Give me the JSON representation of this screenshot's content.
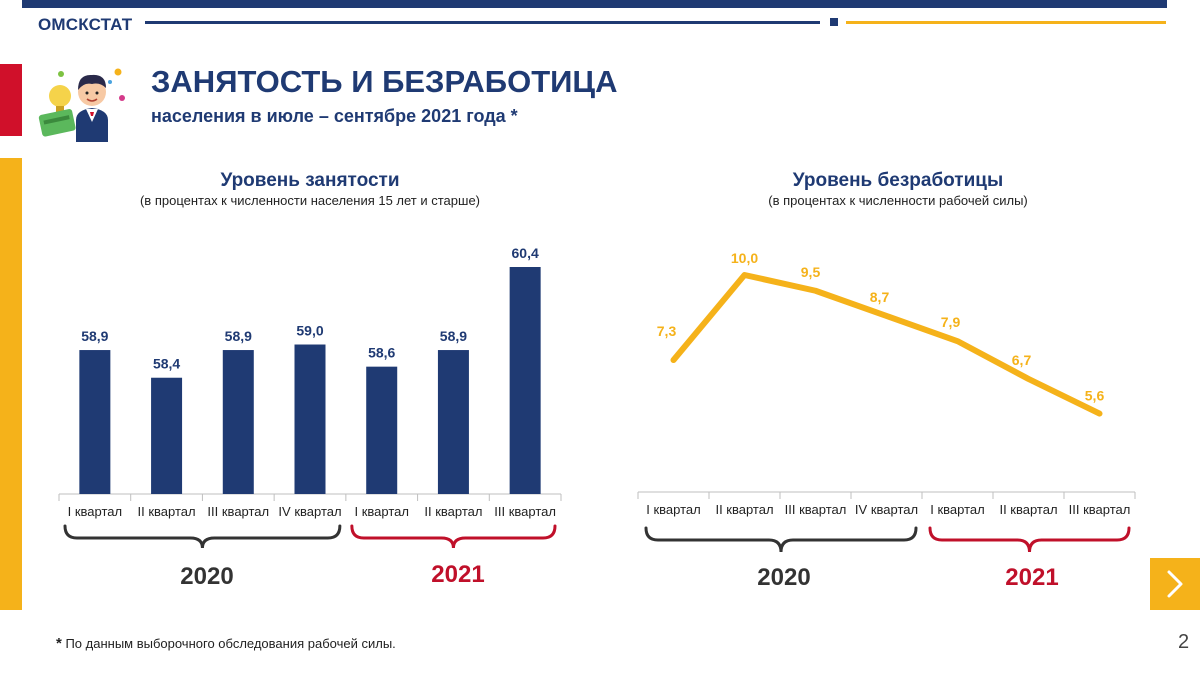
{
  "header": {
    "brand": "ОМСКСТАТ",
    "title": "ЗАНЯТОСТЬ И БЕЗРАБОТИЦА",
    "subtitle": "населения в июле – сентябре 2021 года *"
  },
  "colors": {
    "navy": "#1f3a73",
    "gold": "#f5b21a",
    "red": "#d0102a"
  },
  "chart_data": [
    {
      "type": "bar",
      "title": "Уровень занятости",
      "subtitle": "(в процентах  к численности  населения  15 лет и старше)",
      "categories": [
        "I квартал",
        "II квартал",
        "III квартал",
        "IV квартал",
        "I квартал",
        "II квартал",
        "III квартал"
      ],
      "values": [
        58.9,
        58.4,
        58.9,
        59.0,
        58.6,
        58.9,
        60.4
      ],
      "value_labels": [
        "58,9",
        "58,4",
        "58,9",
        "59,0",
        "58,6",
        "58,9",
        "60,4"
      ],
      "groups": [
        {
          "label": "2020",
          "start": 0,
          "end": 3,
          "color": "#333333"
        },
        {
          "label": "2021",
          "start": 4,
          "end": 6,
          "color": "#c0102a"
        }
      ],
      "bar_color": "#1f3a73",
      "ylim": [
        56.3,
        60.4
      ]
    },
    {
      "type": "line",
      "title": "Уровень безработицы",
      "subtitle": "(в процентах  к численности  рабочей силы)",
      "categories": [
        "I квартал",
        "II квартал",
        "III квартал",
        "IV квартал",
        "I квартал",
        "II квартал",
        "III квартал"
      ],
      "values": [
        7.3,
        10.0,
        9.5,
        8.7,
        7.9,
        6.7,
        5.6
      ],
      "value_labels": [
        "7,3",
        "10,0",
        "9,5",
        "8,7",
        "7,9",
        "6,7",
        "5,6"
      ],
      "groups": [
        {
          "label": "2020",
          "start": 0,
          "end": 3,
          "color": "#333333"
        },
        {
          "label": "2021",
          "start": 4,
          "end": 6,
          "color": "#c0102a"
        }
      ],
      "line_color": "#f5b21a",
      "ylim": [
        0,
        14.6
      ]
    }
  ],
  "footnote": {
    "star": "*",
    "text": " По данным выборочного обследования рабочей силы."
  },
  "page_number": "2",
  "nav": {
    "next_icon": "chevron-right-icon"
  }
}
